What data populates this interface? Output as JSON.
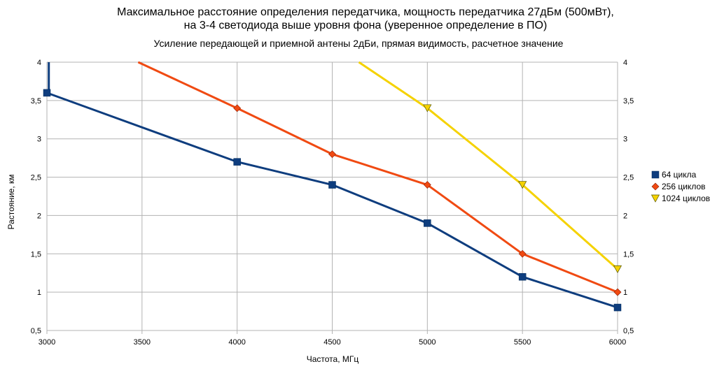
{
  "chart_data": {
    "type": "line",
    "title": "Максимальное расстояние определения передатчика, мощность передатчика 27дБм (500мВт),",
    "title_line2": "на 3-4 светодиода выше уровня фона (уверенное определение в ПО)",
    "subtitle": "Усиление передающей и приемной антены 2дБи, прямая видимость, расчетное значение",
    "xlabel": "Частота, МГц",
    "ylabel": "Растояние, км",
    "xlim": [
      3000,
      6000
    ],
    "ylim": [
      0.5,
      4
    ],
    "x_ticks": [
      "3000",
      "3500",
      "4000",
      "4500",
      "5000",
      "5500",
      "6000"
    ],
    "y_ticks": [
      "0,5",
      "1",
      "1,5",
      "2",
      "2,5",
      "3",
      "3,5",
      "4"
    ],
    "grid": true,
    "legend_position": "right",
    "series": [
      {
        "name": "64 цикла",
        "color": "#0e3d7e",
        "marker": "square",
        "points": [
          [
            3000,
            3.6
          ],
          [
            4000,
            2.7
          ],
          [
            4500,
            2.4
          ],
          [
            5000,
            1.9
          ],
          [
            5500,
            1.2
          ],
          [
            6000,
            0.8
          ]
        ],
        "line_extra": [
          [
            3010,
            4.0
          ],
          [
            3010,
            3.63
          ]
        ]
      },
      {
        "name": "256 циклов",
        "color": "#f04a12",
        "marker": "diamond",
        "points": [
          [
            3480,
            4.0
          ],
          [
            4000,
            3.4
          ],
          [
            4500,
            2.8
          ],
          [
            5000,
            2.4
          ],
          [
            5500,
            1.5
          ],
          [
            6000,
            1.0
          ]
        ],
        "marker_skip_first": true
      },
      {
        "name": "1024 циклов",
        "color": "#f5d200",
        "marker": "triangle-down",
        "points": [
          [
            4640,
            4.0
          ],
          [
            5000,
            3.4
          ],
          [
            5500,
            2.4
          ],
          [
            6000,
            1.3
          ]
        ],
        "marker_skip_first": true
      }
    ]
  }
}
